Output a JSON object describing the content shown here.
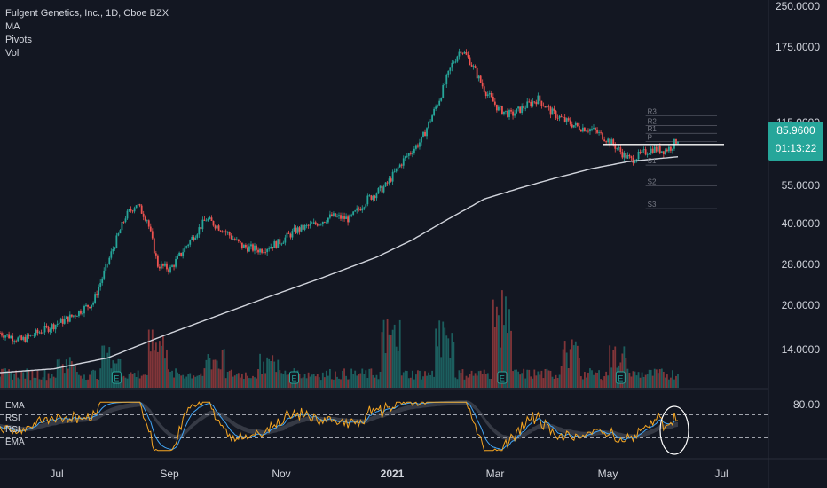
{
  "header": {
    "symbol_line": "Fulgent Genetics, Inc., 1D, Cboe BZX",
    "indicators": [
      "MA",
      "Pivots",
      "Vol"
    ]
  },
  "oscillator": {
    "labels": [
      "EMA",
      "RSI",
      "RSI",
      "EMA"
    ],
    "axis_label": "80.00"
  },
  "price_axis": {
    "ticks": [
      "250.0000",
      "175.0000",
      "115.0000",
      "55.0000",
      "40.0000",
      "28.0000",
      "20.0000",
      "14.0000"
    ],
    "last_price": "85.9600",
    "countdown": "01:13:22"
  },
  "pivot_labels": [
    "R3",
    "R2",
    "R1",
    "P",
    "S1",
    "S2",
    "S3"
  ],
  "time_axis": {
    "ticks": [
      "Jul",
      "Sep",
      "Nov",
      "2021",
      "Mar",
      "May",
      "Jul"
    ]
  },
  "earnings_marker": "E",
  "colors": {
    "background": "#131722",
    "up": "#26a69a",
    "down": "#ef5350",
    "ma_line": "#d1d4dc",
    "rsi_line": "#f5a623",
    "ema_line": "#42a5f5",
    "grid_text": "#d1d4dc"
  },
  "chart_data": {
    "type": "candlestick",
    "scale": "log",
    "ylim": [
      11.5,
      260
    ],
    "x_labels": [
      "Jul",
      "Sep",
      "Nov",
      "2021",
      "Mar",
      "May",
      "Jul"
    ],
    "anchors": [
      [
        0,
        17
      ],
      [
        12,
        16
      ],
      [
        25,
        17.5
      ],
      [
        40,
        19.5
      ],
      [
        52,
        22
      ],
      [
        62,
        33
      ],
      [
        70,
        45
      ],
      [
        76,
        50
      ],
      [
        82,
        44
      ],
      [
        88,
        30
      ],
      [
        95,
        29
      ],
      [
        105,
        36
      ],
      [
        115,
        44
      ],
      [
        125,
        40
      ],
      [
        135,
        35
      ],
      [
        145,
        34
      ],
      [
        155,
        36
      ],
      [
        165,
        40
      ],
      [
        175,
        42
      ],
      [
        185,
        45
      ],
      [
        195,
        44
      ],
      [
        205,
        52
      ],
      [
        215,
        58
      ],
      [
        225,
        72
      ],
      [
        235,
        85
      ],
      [
        245,
        120
      ],
      [
        252,
        160
      ],
      [
        257,
        182
      ],
      [
        262,
        165
      ],
      [
        270,
        130
      ],
      [
        278,
        110
      ],
      [
        285,
        105
      ],
      [
        292,
        112
      ],
      [
        300,
        120
      ],
      [
        307,
        108
      ],
      [
        315,
        100
      ],
      [
        322,
        95
      ],
      [
        330,
        93
      ],
      [
        336,
        88
      ],
      [
        342,
        82
      ],
      [
        348,
        75
      ],
      [
        352,
        72
      ],
      [
        358,
        76
      ],
      [
        364,
        79
      ],
      [
        370,
        78
      ],
      [
        374,
        80
      ],
      [
        378,
        86
      ]
    ],
    "ma_anchors": [
      [
        0,
        12.2
      ],
      [
        30,
        12.6
      ],
      [
        60,
        13.8
      ],
      [
        90,
        16.5
      ],
      [
        120,
        19.5
      ],
      [
        150,
        23
      ],
      [
        180,
        27
      ],
      [
        210,
        32
      ],
      [
        230,
        37
      ],
      [
        250,
        44
      ],
      [
        270,
        52
      ],
      [
        290,
        57
      ],
      [
        310,
        62
      ],
      [
        330,
        67
      ],
      [
        350,
        71
      ],
      [
        378,
        74
      ]
    ],
    "volume_spikes": [
      [
        37,
        0.35
      ],
      [
        62,
        0.45
      ],
      [
        88,
        0.6
      ],
      [
        120,
        0.4
      ],
      [
        150,
        0.35
      ],
      [
        218,
        0.75
      ],
      [
        248,
        0.7
      ],
      [
        280,
        1.0
      ],
      [
        318,
        0.5
      ],
      [
        345,
        0.45
      ]
    ],
    "earnings_positions": [
      65,
      164,
      280,
      346
    ],
    "pivots": {
      "R3": 104,
      "R2": 96,
      "R1": 90,
      "P": 84,
      "S1": 69,
      "S2": 58,
      "S3": 48
    },
    "pivot_start_index": 360,
    "resistance_level": 82,
    "rsi_range": [
      0,
      100
    ],
    "rsi_bands": [
      70,
      30
    ]
  }
}
